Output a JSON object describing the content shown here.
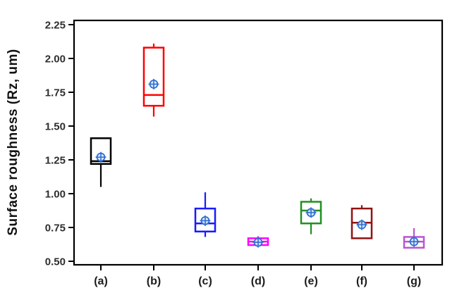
{
  "chart_data": {
    "type": "boxplot",
    "title": "",
    "ylabel": "Surface roughness (Rz, um)",
    "xlabel": "",
    "ylim": [
      0.47,
      2.28
    ],
    "grid": false,
    "legend": "none",
    "yticks": [
      2.25,
      2.0,
      1.75,
      1.5,
      1.25,
      1.0,
      0.75,
      0.5
    ],
    "ytick_labels": [
      "2.25",
      "2.00",
      "1.75",
      "1.50",
      "1.25",
      "1.00",
      "0.75",
      "0.50"
    ],
    "categories": [
      "(a)",
      "(b)",
      "(c)",
      "(d)",
      "(e)",
      "(f)",
      "(g)"
    ],
    "mean_marker": {
      "shape": "circled-plus",
      "color": "#2f6fd0",
      "fill": "#d8e7f8"
    },
    "series": [
      {
        "category": "(a)",
        "color": "#000000",
        "whisker_low": 1.05,
        "q1": 1.22,
        "median": 1.24,
        "q3": 1.41,
        "whisker_high": 1.41,
        "mean": 1.27
      },
      {
        "category": "(b)",
        "color": "#ff0000",
        "whisker_low": 1.57,
        "q1": 1.65,
        "median": 1.73,
        "q3": 2.08,
        "whisker_high": 2.11,
        "mean": 1.81
      },
      {
        "category": "(c)",
        "color": "#1a1aff",
        "whisker_low": 0.68,
        "q1": 0.72,
        "median": 0.78,
        "q3": 0.89,
        "whisker_high": 1.01,
        "mean": 0.8
      },
      {
        "category": "(d)",
        "color": "#ff00ff",
        "whisker_low": 0.62,
        "q1": 0.62,
        "median": 0.645,
        "q3": 0.67,
        "whisker_high": 0.685,
        "mean": 0.64
      },
      {
        "category": "(e)",
        "color": "#209020",
        "whisker_low": 0.7,
        "q1": 0.78,
        "median": 0.875,
        "q3": 0.94,
        "whisker_high": 0.965,
        "mean": 0.86
      },
      {
        "category": "(f)",
        "color": "#8f1313",
        "whisker_low": 0.67,
        "q1": 0.67,
        "median": 0.785,
        "q3": 0.89,
        "whisker_high": 0.915,
        "mean": 0.77
      },
      {
        "category": "(g)",
        "color": "#ba55d3",
        "whisker_low": 0.6,
        "q1": 0.6,
        "median": 0.645,
        "q3": 0.68,
        "whisker_high": 0.745,
        "mean": 0.645
      }
    ]
  }
}
